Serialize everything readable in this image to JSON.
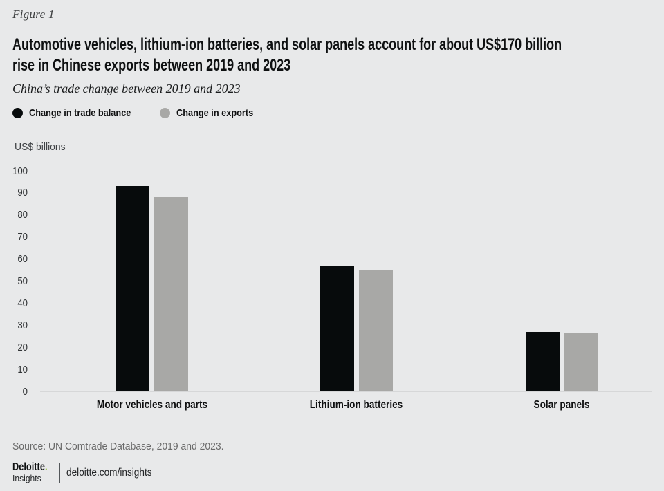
{
  "page": {
    "figure_label": "Figure 1",
    "title_lines": [
      "Automotive vehicles, lithium-ion batteries, and solar panels account for about US$170 billion",
      "rise in Chinese exports between 2019 and 2023"
    ],
    "subtitle": "China’s trade change between 2019 and 2023",
    "source": "Source: UN Comtrade Database, 2019 and 2023.",
    "footer": {
      "brand": "Deloitte",
      "brand_dot": ".",
      "brand_dot_color": "#86bc25",
      "brand_sub": "Insights",
      "link": "deloitte.com/insights"
    }
  },
  "chart_data": {
    "type": "bar",
    "title": "China’s trade change between 2019 and 2023",
    "unit_label": "US$ billions",
    "categories": [
      "Motor vehicles and parts",
      "Lithium-ion batteries",
      "Solar panels"
    ],
    "series": [
      {
        "name": "Change in trade balance",
        "color": "#070b0c",
        "values": [
          93,
          57,
          27
        ]
      },
      {
        "name": "Change in exports",
        "color": "#a8a8a6",
        "values": [
          88,
          55,
          26.5
        ]
      }
    ],
    "ylim": [
      0,
      100
    ],
    "ytick_step": 10,
    "grid": false,
    "legend_position": "top-left",
    "background_color": "#e8e9ea",
    "xlabel": "",
    "ylabel": "US$ billions"
  }
}
